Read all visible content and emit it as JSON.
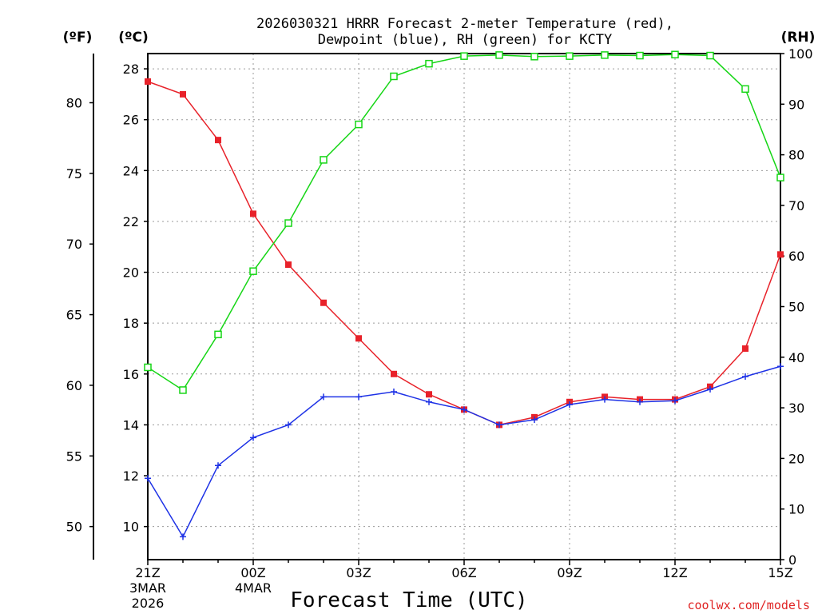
{
  "chart_data": {
    "type": "line",
    "title": "2026030321 HRRR Forecast 2-meter Temperature (red),",
    "subtitle": "Dewpoint (blue), RH (green) for KCTY",
    "xlabel": "Forecast Time (UTC)",
    "credit": "coolwx.com/models",
    "units": {
      "f": "(ºF)",
      "c": "(ºC)",
      "rh": "(RH)"
    },
    "x_hours": [
      0,
      1,
      2,
      3,
      4,
      5,
      6,
      7,
      8,
      9,
      10,
      11,
      12,
      13,
      14,
      15,
      16,
      17,
      18
    ],
    "x_ticks": [
      {
        "hour": 0,
        "label": "21Z",
        "sub1": "3MAR",
        "sub2": "2026"
      },
      {
        "hour": 3,
        "label": "00Z",
        "sub1": "4MAR",
        "sub2": ""
      },
      {
        "hour": 6,
        "label": "03Z",
        "sub1": "",
        "sub2": ""
      },
      {
        "hour": 9,
        "label": "06Z",
        "sub1": "",
        "sub2": ""
      },
      {
        "hour": 12,
        "label": "09Z",
        "sub1": "",
        "sub2": ""
      },
      {
        "hour": 15,
        "label": "12Z",
        "sub1": "",
        "sub2": ""
      },
      {
        "hour": 18,
        "label": "15Z",
        "sub1": "",
        "sub2": ""
      }
    ],
    "c_range": [
      8.7,
      28.6
    ],
    "c_ticks": [
      10,
      12,
      14,
      16,
      18,
      20,
      22,
      24,
      26,
      28
    ],
    "f_ticks": [
      50,
      55,
      60,
      65,
      70,
      75,
      80
    ],
    "rh_range": [
      0,
      100
    ],
    "rh_ticks": [
      0,
      10,
      20,
      30,
      40,
      50,
      60,
      70,
      80,
      90,
      100
    ],
    "series": [
      {
        "name": "2-meter Temperature",
        "axis": "c",
        "color": "#e8222a",
        "marker": "filled-square",
        "values": [
          27.5,
          27.0,
          25.2,
          22.3,
          20.3,
          18.8,
          17.4,
          16.0,
          15.2,
          14.6,
          14.0,
          14.3,
          14.9,
          15.1,
          15.0,
          15.0,
          15.5,
          17.0,
          20.7
        ]
      },
      {
        "name": "Dewpoint",
        "axis": "c",
        "color": "#1e32e6",
        "marker": "plus",
        "values": [
          11.9,
          9.6,
          12.4,
          13.5,
          14.0,
          15.1,
          15.1,
          15.3,
          14.9,
          14.6,
          14.0,
          14.2,
          14.8,
          15.0,
          14.9,
          14.95,
          15.4,
          15.9,
          16.3
        ]
      },
      {
        "name": "RH",
        "axis": "rh",
        "color": "#16d616",
        "marker": "open-square",
        "values": [
          38,
          33.5,
          44.5,
          57,
          66.5,
          79,
          86,
          95.5,
          98,
          99.5,
          99.7,
          99.4,
          99.5,
          99.7,
          99.6,
          99.8,
          99.6,
          93,
          75.5
        ]
      }
    ]
  }
}
